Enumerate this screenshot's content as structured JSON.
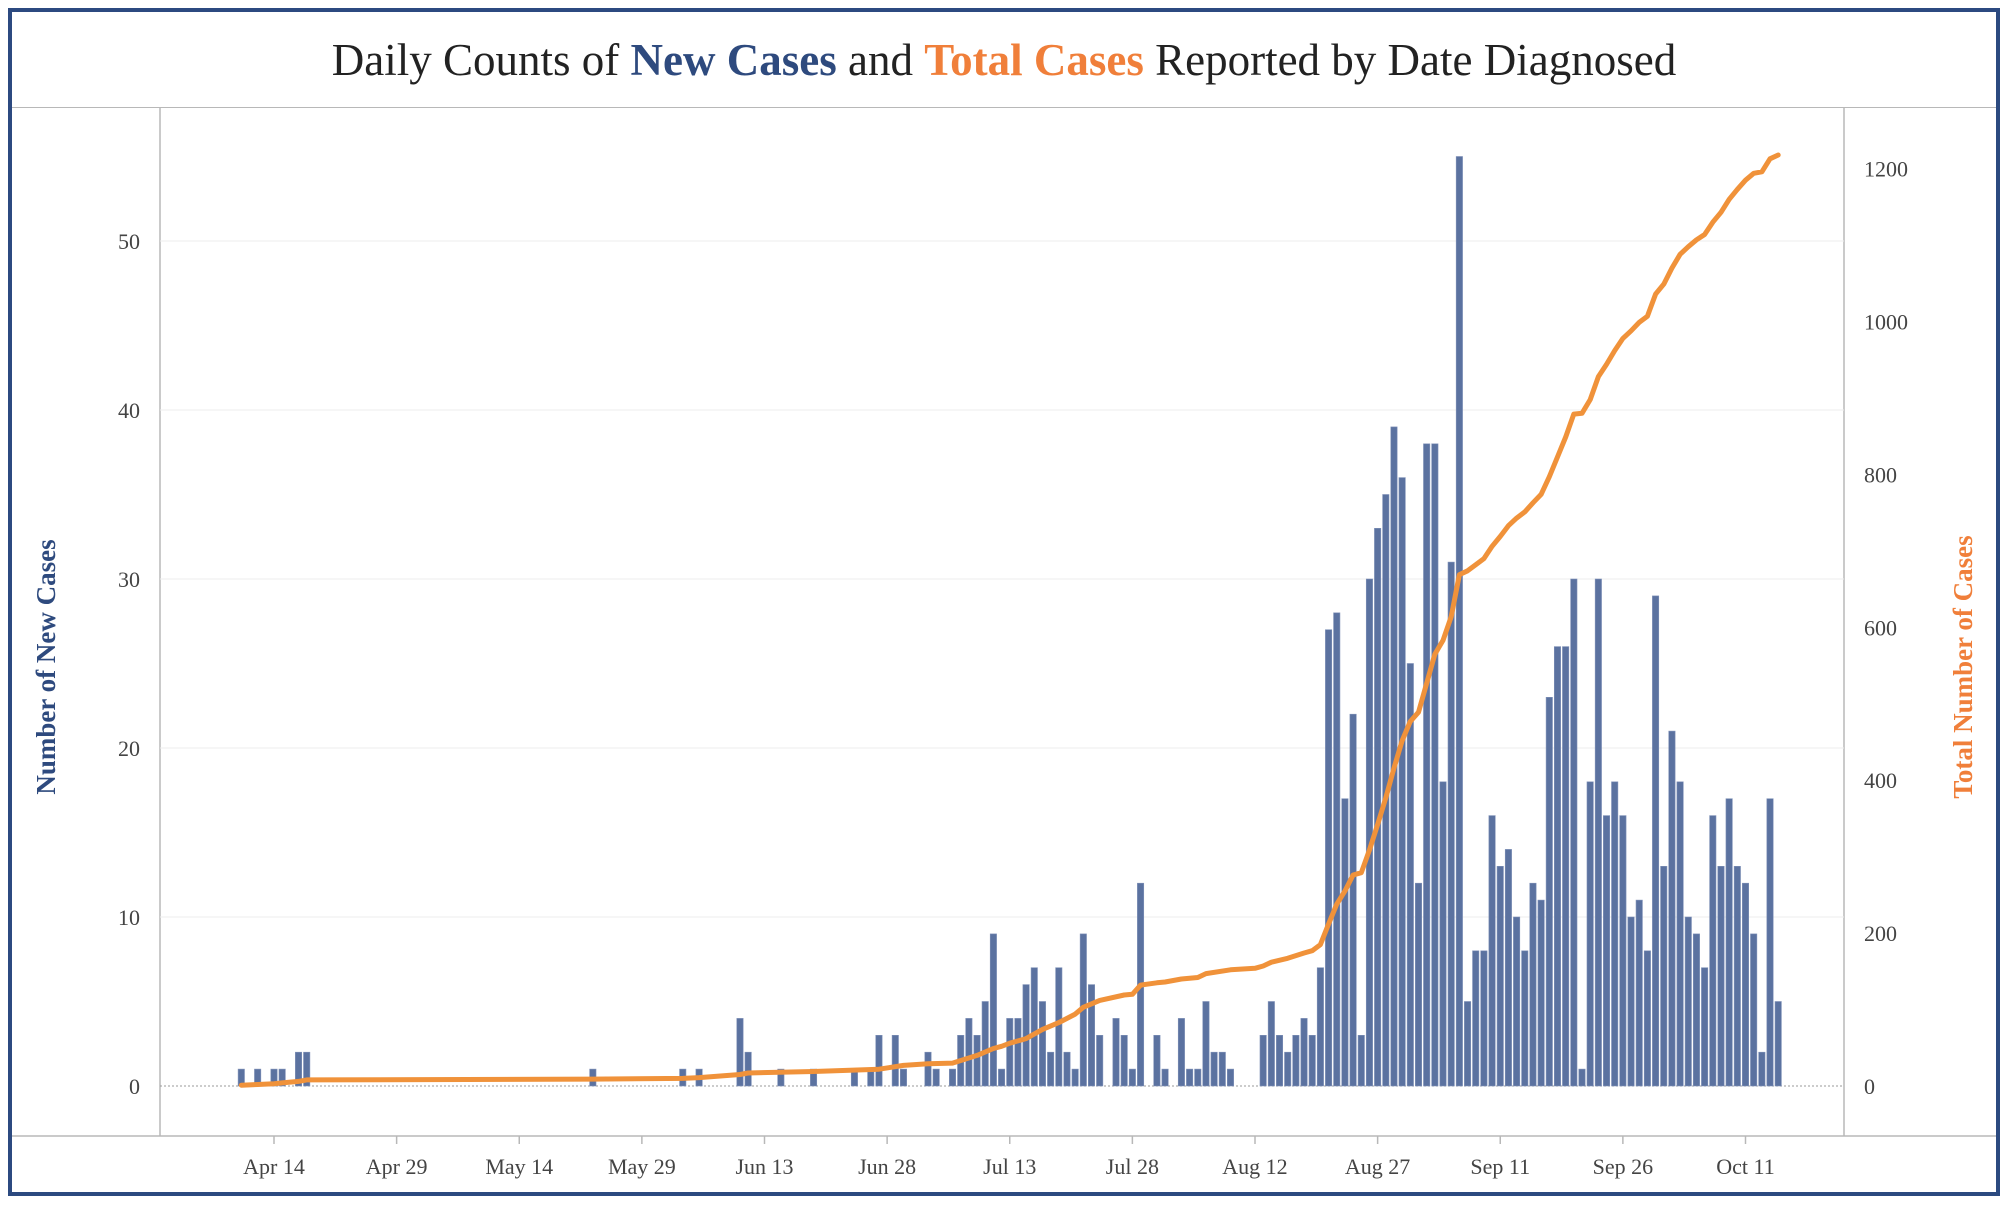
{
  "title": {
    "prefix": "Daily Counts of ",
    "new_part": "New Cases",
    "middle": " and ",
    "total_part": "Total Cases",
    "suffix": " Reported by Date Diagnosed"
  },
  "colors": {
    "frame": "#2c4a80",
    "bar": "#5b72a0",
    "line": "#f0923a",
    "new_text": "#2e4a7e",
    "total_text": "#f07f3a"
  },
  "chart_data": {
    "type": "bar",
    "title": "Daily Counts of New Cases and Total Cases Reported by Date Diagnosed",
    "xlabel": "",
    "ylabel_left": "Number of New Cases",
    "ylabel_right": "Total Number of Cases",
    "ylim_left": [
      0,
      58
    ],
    "ylim_right": [
      0,
      1265
    ],
    "left_ticks": [
      0,
      10,
      20,
      30,
      40,
      50
    ],
    "right_ticks": [
      0,
      200,
      400,
      600,
      800,
      1000,
      1200
    ],
    "x_tick_labels": [
      "Apr 14",
      "Apr 29",
      "May 14",
      "May 29",
      "Jun 13",
      "Jun 28",
      "Jul 13",
      "Jul 28",
      "Aug 12",
      "Aug 27",
      "Sep 11",
      "Sep 26",
      "Oct 11"
    ],
    "x_tick_days": [
      0,
      15,
      30,
      45,
      60,
      75,
      90,
      105,
      120,
      135,
      150,
      165,
      180
    ],
    "day_zero": "Apr 14",
    "grid": true,
    "series": [
      {
        "name": "New Cases",
        "type": "bar",
        "axis": "left",
        "points": [
          [
            -4,
            1
          ],
          [
            -2,
            1
          ],
          [
            0,
            1
          ],
          [
            1,
            1
          ],
          [
            3,
            2
          ],
          [
            4,
            2
          ],
          [
            39,
            1
          ],
          [
            50,
            1
          ],
          [
            52,
            1
          ],
          [
            57,
            4
          ],
          [
            58,
            2
          ],
          [
            62,
            1
          ],
          [
            66,
            1
          ],
          [
            71,
            1
          ],
          [
            73,
            1
          ],
          [
            74,
            3
          ],
          [
            76,
            3
          ],
          [
            77,
            1
          ],
          [
            80,
            2
          ],
          [
            81,
            1
          ],
          [
            83,
            1
          ],
          [
            84,
            3
          ],
          [
            85,
            4
          ],
          [
            86,
            3
          ],
          [
            87,
            5
          ],
          [
            88,
            9
          ],
          [
            89,
            1
          ],
          [
            90,
            4
          ],
          [
            91,
            4
          ],
          [
            92,
            6
          ],
          [
            93,
            7
          ],
          [
            94,
            5
          ],
          [
            95,
            2
          ],
          [
            96,
            7
          ],
          [
            97,
            2
          ],
          [
            98,
            1
          ],
          [
            99,
            9
          ],
          [
            100,
            6
          ],
          [
            101,
            3
          ],
          [
            103,
            4
          ],
          [
            104,
            3
          ],
          [
            105,
            1
          ],
          [
            106,
            12
          ],
          [
            108,
            3
          ],
          [
            109,
            1
          ],
          [
            111,
            4
          ],
          [
            112,
            1
          ],
          [
            113,
            1
          ],
          [
            114,
            5
          ],
          [
            115,
            2
          ],
          [
            116,
            2
          ],
          [
            117,
            1
          ],
          [
            121,
            3
          ],
          [
            122,
            5
          ],
          [
            123,
            3
          ],
          [
            124,
            2
          ],
          [
            125,
            3
          ],
          [
            126,
            4
          ],
          [
            127,
            3
          ],
          [
            128,
            7
          ],
          [
            129,
            27
          ],
          [
            130,
            28
          ],
          [
            131,
            17
          ],
          [
            132,
            22
          ],
          [
            133,
            3
          ],
          [
            134,
            30
          ],
          [
            135,
            33
          ],
          [
            136,
            35
          ],
          [
            137,
            39
          ],
          [
            138,
            36
          ],
          [
            139,
            25
          ],
          [
            140,
            12
          ],
          [
            141,
            38
          ],
          [
            142,
            38
          ],
          [
            143,
            18
          ],
          [
            144,
            31
          ],
          [
            145,
            55
          ],
          [
            146,
            5
          ],
          [
            147,
            8
          ],
          [
            148,
            8
          ],
          [
            149,
            16
          ],
          [
            150,
            13
          ],
          [
            151,
            14
          ],
          [
            152,
            10
          ],
          [
            153,
            8
          ],
          [
            154,
            12
          ],
          [
            155,
            11
          ],
          [
            156,
            23
          ],
          [
            157,
            26
          ],
          [
            158,
            26
          ],
          [
            159,
            30
          ],
          [
            160,
            1
          ],
          [
            161,
            18
          ],
          [
            162,
            30
          ],
          [
            163,
            16
          ],
          [
            164,
            18
          ],
          [
            165,
            16
          ],
          [
            166,
            10
          ],
          [
            167,
            11
          ],
          [
            168,
            8
          ],
          [
            169,
            29
          ],
          [
            170,
            13
          ],
          [
            171,
            21
          ],
          [
            172,
            18
          ],
          [
            173,
            10
          ],
          [
            174,
            9
          ],
          [
            175,
            7
          ],
          [
            176,
            16
          ],
          [
            177,
            13
          ],
          [
            178,
            17
          ],
          [
            179,
            13
          ],
          [
            180,
            12
          ],
          [
            181,
            9
          ],
          [
            182,
            2
          ],
          [
            183,
            17
          ],
          [
            184,
            5
          ]
        ]
      },
      {
        "name": "Total Cases",
        "type": "line",
        "axis": "right",
        "points": [
          [
            -4,
            1
          ],
          [
            -2,
            2
          ],
          [
            0,
            3
          ],
          [
            1,
            4
          ],
          [
            3,
            6
          ],
          [
            4,
            8
          ],
          [
            39,
            9
          ],
          [
            50,
            10
          ],
          [
            52,
            11
          ],
          [
            57,
            15
          ],
          [
            58,
            17
          ],
          [
            66,
            19
          ],
          [
            74,
            22
          ],
          [
            77,
            27
          ],
          [
            80,
            29
          ],
          [
            83,
            30
          ],
          [
            86,
            40
          ],
          [
            88,
            49
          ],
          [
            89,
            52
          ],
          [
            90,
            56
          ],
          [
            92,
            62
          ],
          [
            94,
            74
          ],
          [
            96,
            83
          ],
          [
            98,
            94
          ],
          [
            99,
            103
          ],
          [
            101,
            112
          ],
          [
            104,
            119
          ],
          [
            105,
            120
          ],
          [
            106,
            132
          ],
          [
            108,
            135
          ],
          [
            109,
            136
          ],
          [
            111,
            140
          ],
          [
            113,
            142
          ],
          [
            114,
            147
          ],
          [
            117,
            152
          ],
          [
            120,
            154
          ],
          [
            121,
            157
          ],
          [
            122,
            162
          ],
          [
            124,
            167
          ],
          [
            126,
            174
          ],
          [
            127,
            177
          ],
          [
            128,
            185
          ],
          [
            129,
            212
          ],
          [
            130,
            238
          ],
          [
            131,
            255
          ],
          [
            132,
            276
          ],
          [
            133,
            279
          ],
          [
            134,
            309
          ],
          [
            135,
            342
          ],
          [
            136,
            377
          ],
          [
            137,
            416
          ],
          [
            138,
            452
          ],
          [
            139,
            477
          ],
          [
            140,
            489
          ],
          [
            141,
            527
          ],
          [
            142,
            565
          ],
          [
            143,
            583
          ],
          [
            144,
            614
          ],
          [
            145,
            669
          ],
          [
            146,
            674
          ],
          [
            147,
            682
          ],
          [
            148,
            690
          ],
          [
            149,
            706
          ],
          [
            150,
            719
          ],
          [
            151,
            733
          ],
          [
            152,
            743
          ],
          [
            153,
            751
          ],
          [
            154,
            763
          ],
          [
            155,
            774
          ],
          [
            156,
            797
          ],
          [
            157,
            823
          ],
          [
            158,
            849
          ],
          [
            159,
            879
          ],
          [
            160,
            880
          ],
          [
            161,
            898
          ],
          [
            162,
            928
          ],
          [
            163,
            944
          ],
          [
            164,
            962
          ],
          [
            165,
            978
          ],
          [
            166,
            988
          ],
          [
            167,
            999
          ],
          [
            168,
            1007
          ],
          [
            169,
            1036
          ],
          [
            170,
            1049
          ],
          [
            171,
            1070
          ],
          [
            172,
            1088
          ],
          [
            173,
            1098
          ],
          [
            174,
            1107
          ],
          [
            175,
            1114
          ],
          [
            176,
            1130
          ],
          [
            177,
            1143
          ],
          [
            178,
            1160
          ],
          [
            179,
            1173
          ],
          [
            180,
            1185
          ],
          [
            181,
            1194
          ],
          [
            182,
            1196
          ],
          [
            183,
            1213
          ],
          [
            184,
            1218
          ]
        ]
      }
    ]
  }
}
